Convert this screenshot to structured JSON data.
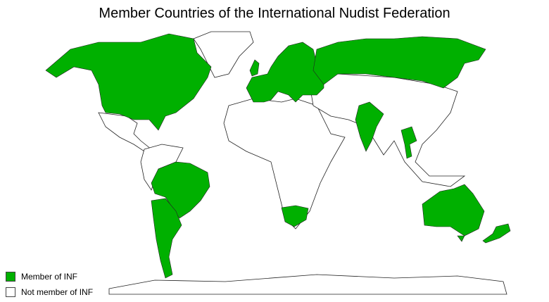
{
  "title": "Member Countries of the International Nudist Federation",
  "colors": {
    "member": "#00b000",
    "non_member": "#ffffff",
    "border": "#222222"
  },
  "legend": [
    {
      "label": "Member of INF",
      "color": "#00b000"
    },
    {
      "label": "Not member of INF",
      "color": "#ffffff"
    }
  ],
  "member_regions": [
    "Canada",
    "United States",
    "Brazil",
    "Argentina",
    "Chile",
    "Western Europe",
    "Scandinavia",
    "Russia",
    "India",
    "Thailand",
    "South Africa",
    "Australia",
    "New Zealand"
  ]
}
